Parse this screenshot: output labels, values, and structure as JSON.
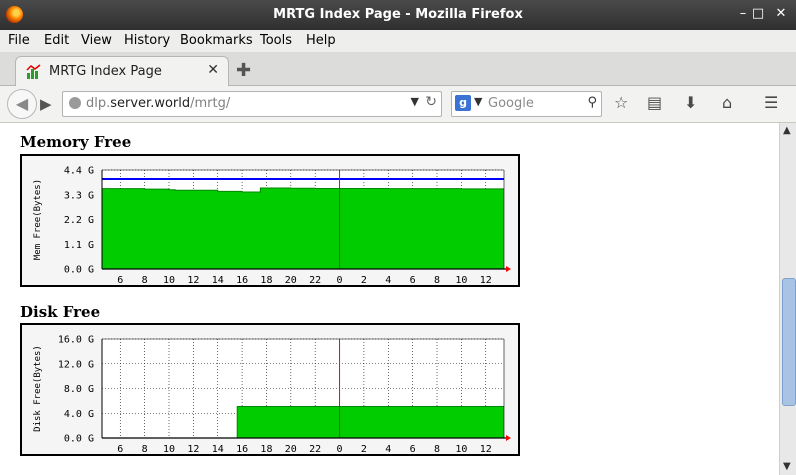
{
  "window": {
    "title": "MRTG Index Page - Mozilla Firefox"
  },
  "menu": [
    "File",
    "Edit",
    "View",
    "History",
    "Bookmarks",
    "Tools",
    "Help"
  ],
  "tab": {
    "title": "MRTG Index Page"
  },
  "address": {
    "prefix": "dlp.",
    "host": "server.world",
    "path": "/mrtg/"
  },
  "search": {
    "placeholder": "Google"
  },
  "colors": {
    "fill": "#00cc00",
    "line": "#0000ff",
    "now_marker": "#ff0000"
  },
  "graphs": [
    {
      "heading": "Memory Free",
      "ylabel": "Mem Free(Bytes)",
      "yticks": [
        "4.4 G",
        "3.3 G",
        "2.2 G",
        "1.1 G",
        "0.0 G"
      ],
      "xticks": [
        "6",
        "8",
        "10",
        "12",
        "14",
        "16",
        "18",
        "20",
        "22",
        "0",
        "2",
        "4",
        "6",
        "8",
        "10",
        "12"
      ]
    },
    {
      "heading": "Disk Free",
      "ylabel": "Disk Free(Bytes)",
      "yticks": [
        "16.0 G",
        "12.0 G",
        "8.0 G",
        "4.0 G",
        "0.0 G"
      ],
      "xticks": [
        "6",
        "8",
        "10",
        "12",
        "14",
        "16",
        "18",
        "20",
        "22",
        "0",
        "2",
        "4",
        "6",
        "8",
        "10",
        "12"
      ]
    }
  ],
  "chart_data": [
    {
      "type": "area",
      "ylabel": "Mem Free(Bytes)",
      "ylim": [
        0,
        4.4
      ],
      "y_unit": "G",
      "x_hours": [
        4.5,
        5,
        6,
        8,
        10,
        10.5,
        12,
        13,
        14,
        14.5,
        16,
        17,
        17.5,
        18,
        20,
        22,
        0,
        2,
        4,
        6,
        8,
        10,
        12,
        13.5
      ],
      "values": [
        3.57,
        3.57,
        3.57,
        3.55,
        3.52,
        3.5,
        3.5,
        3.5,
        3.45,
        3.45,
        3.42,
        3.42,
        3.6,
        3.6,
        3.59,
        3.58,
        3.58,
        3.58,
        3.57,
        3.57,
        3.57,
        3.56,
        3.56,
        3.56
      ],
      "max_line": 4.0,
      "grid": true
    },
    {
      "type": "area",
      "ylabel": "Disk Free(Bytes)",
      "ylim": [
        0,
        16.0
      ],
      "y_unit": "G",
      "x_hours": [
        4.5,
        6,
        8,
        10,
        12,
        14,
        15.5,
        15.6,
        18,
        20,
        22,
        0,
        2,
        4,
        6,
        8,
        10,
        12,
        13.5
      ],
      "values": [
        0,
        0,
        0,
        0,
        0,
        0,
        0,
        5.1,
        5.1,
        5.1,
        5.1,
        5.1,
        5.1,
        5.1,
        5.1,
        5.1,
        5.1,
        5.1,
        5.1
      ],
      "grid": true
    }
  ]
}
